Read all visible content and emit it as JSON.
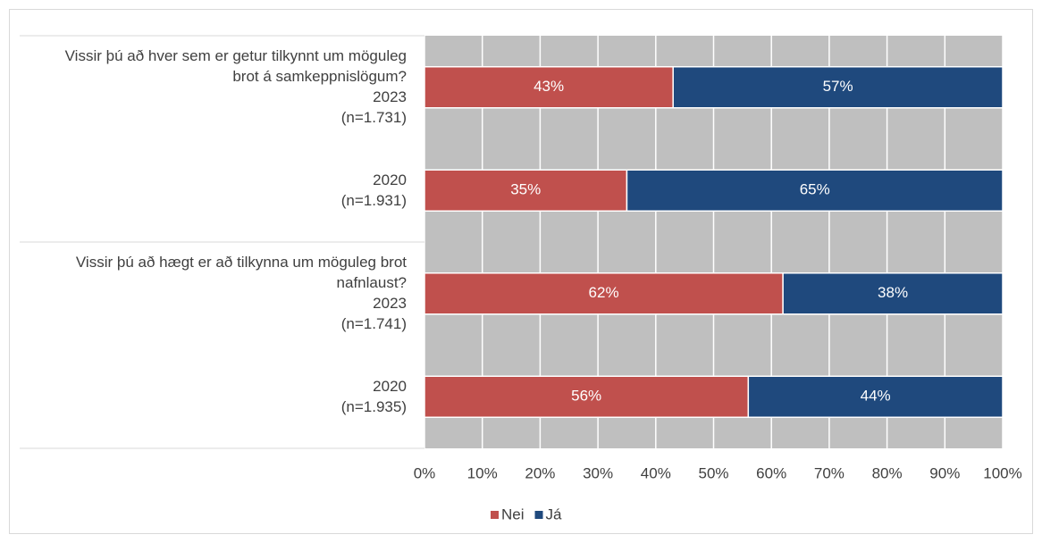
{
  "chart_data": {
    "type": "stacked-bar-horizontal",
    "groups": [
      {
        "name": "Vissir þú að hver sem er getur tilkynnt um möguleg brot á samkeppnislögum?",
        "categories": [
          "2023\n(n=1.731)",
          "2020\n(n=1.931)"
        ]
      },
      {
        "name": "Vissir þú að hægt er að tilkynna um möguleg brot nafnlaust?",
        "categories": [
          "2023\n(n=1.741)",
          "2020\n(n=1.935)"
        ]
      }
    ],
    "series": [
      {
        "name": "Nei",
        "color": "#c0504d",
        "values": [
          43,
          35,
          62,
          56
        ],
        "value_labels": [
          "43%",
          "35%",
          "62%",
          "56%"
        ]
      },
      {
        "name": "Já",
        "color": "#1f497d",
        "values": [
          57,
          65,
          38,
          44
        ],
        "value_labels": [
          "57%",
          "65%",
          "38%",
          "44%"
        ]
      }
    ],
    "xlim": [
      0,
      100
    ],
    "xticks": [
      {
        "value": 0,
        "label": "0%"
      },
      {
        "value": 10,
        "label": "10%"
      },
      {
        "value": 20,
        "label": "20%"
      },
      {
        "value": 30,
        "label": "30%"
      },
      {
        "value": 40,
        "label": "40%"
      },
      {
        "value": 50,
        "label": "50%"
      },
      {
        "value": 60,
        "label": "60%"
      },
      {
        "value": 70,
        "label": "70%"
      },
      {
        "value": 80,
        "label": "80%"
      },
      {
        "value": 90,
        "label": "90%"
      },
      {
        "value": 100,
        "label": "100%"
      }
    ],
    "grid": true,
    "legend": "bottom"
  }
}
